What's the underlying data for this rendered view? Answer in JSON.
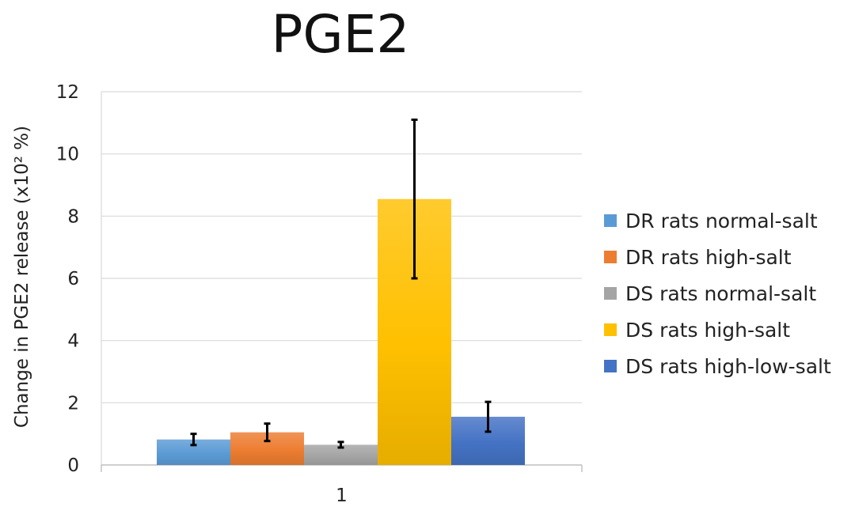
{
  "chart_data": {
    "type": "bar",
    "title": "PGE2",
    "xlabel": "",
    "ylabel": "Change in PGE2 release (x10² %)",
    "categories": [
      "1"
    ],
    "ylim": [
      0,
      12
    ],
    "yticks": [
      0,
      2,
      4,
      6,
      8,
      10,
      12
    ],
    "grid": true,
    "legend_position": "right",
    "series": [
      {
        "name": "DR rats normal-salt",
        "values": [
          0.82
        ],
        "error": [
          0.18
        ],
        "color": "#5B9BD5"
      },
      {
        "name": "DR rats high-salt",
        "values": [
          1.05
        ],
        "error": [
          0.28
        ],
        "color": "#ED7D31"
      },
      {
        "name": "DS rats normal-salt",
        "values": [
          0.65
        ],
        "error": [
          0.09
        ],
        "color": "#A5A5A5"
      },
      {
        "name": "DS rats high-salt",
        "values": [
          8.55
        ],
        "error": [
          2.55
        ],
        "color": "#FFC000"
      },
      {
        "name": "DS rats high-low-salt",
        "values": [
          1.55
        ],
        "error": [
          0.48
        ],
        "color": "#4472C4"
      }
    ]
  }
}
